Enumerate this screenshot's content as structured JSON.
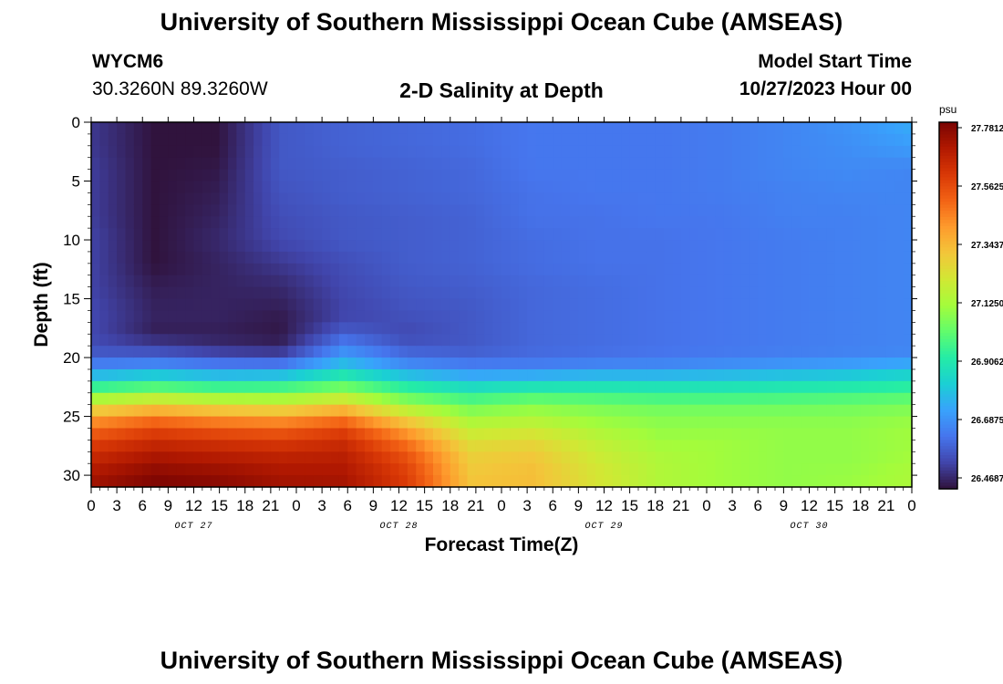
{
  "header": {
    "title": "University of Southern Mississippi Ocean Cube (AMSEAS)",
    "station_id": "WYCM6",
    "coordinates": "30.3260N  89.3260W",
    "subtitle": "2-D Salinity at Depth",
    "model_start_label": "Model Start Time",
    "model_start_value": "10/27/2023 Hour 00"
  },
  "footer": {
    "title": "University of Southern Mississippi Ocean Cube (AMSEAS)"
  },
  "colors": {
    "colormap": [
      "#30123b",
      "#4145ab",
      "#4675ed",
      "#39a2fc",
      "#1bcfd4",
      "#24eca6",
      "#61fc6c",
      "#a4fc3b",
      "#d1e834",
      "#f3c63a",
      "#fe9b2d",
      "#f36315",
      "#d93806",
      "#b11901",
      "#7a0402"
    ]
  },
  "chart_data": {
    "type": "heatmap",
    "title": "2-D Salinity at Depth",
    "xlabel": "Forecast Time(Z)",
    "ylabel": "Depth (ft)",
    "x_hours": [
      0,
      3,
      6,
      9,
      12,
      15,
      18,
      21,
      24,
      27,
      30,
      33,
      36,
      39,
      42,
      45,
      48,
      51,
      54,
      57,
      60,
      63,
      66,
      69,
      72,
      75,
      78,
      81,
      84,
      87,
      90,
      93,
      96
    ],
    "x_tick_labels": [
      "0",
      "3",
      "6",
      "9",
      "12",
      "15",
      "18",
      "21",
      "0",
      "3",
      "6",
      "9",
      "12",
      "15",
      "18",
      "21",
      "0",
      "3",
      "6",
      "9",
      "12",
      "15",
      "18",
      "21",
      "0",
      "3",
      "6",
      "9",
      "12",
      "15",
      "18",
      "21",
      "0"
    ],
    "x_day_labels": [
      {
        "label": "OCT 27",
        "hour": 12
      },
      {
        "label": "OCT 28",
        "hour": 36
      },
      {
        "label": "OCT 29",
        "hour": 60
      },
      {
        "label": "OCT 30",
        "hour": 84
      }
    ],
    "y_ticks": [
      0,
      5,
      10,
      15,
      20,
      25,
      30
    ],
    "ylim": [
      0,
      31
    ],
    "xlim": [
      0,
      96
    ],
    "depths_ft": [
      0,
      2,
      4,
      6,
      8,
      10,
      12,
      14,
      16,
      17,
      18,
      19,
      20,
      21,
      22,
      23,
      24,
      25,
      26,
      27,
      28,
      29,
      30,
      31
    ],
    "salinity_psu": [
      [
        26.54,
        26.47,
        26.47,
        26.6,
        26.62,
        26.63,
        26.64,
        26.66,
        26.66,
        26.66,
        26.67,
        26.69,
        26.72,
        26.77
      ],
      [
        26.54,
        26.47,
        26.47,
        26.6,
        26.62,
        26.63,
        26.64,
        26.66,
        26.66,
        26.66,
        26.67,
        26.69,
        26.71,
        26.74
      ],
      [
        26.55,
        26.47,
        26.48,
        26.6,
        26.61,
        26.62,
        26.63,
        26.66,
        26.66,
        26.66,
        26.67,
        26.69,
        26.7,
        26.69
      ],
      [
        26.55,
        26.47,
        26.49,
        26.59,
        26.61,
        26.62,
        26.63,
        26.65,
        26.66,
        26.66,
        26.67,
        26.68,
        26.69,
        26.69
      ],
      [
        26.55,
        26.47,
        26.5,
        26.58,
        26.6,
        26.61,
        26.62,
        26.65,
        26.65,
        26.66,
        26.66,
        26.68,
        26.68,
        26.69
      ],
      [
        26.56,
        26.47,
        26.51,
        26.57,
        26.6,
        26.61,
        26.62,
        26.64,
        26.65,
        26.65,
        26.66,
        26.67,
        26.68,
        26.69
      ],
      [
        26.56,
        26.47,
        26.5,
        26.54,
        26.58,
        26.61,
        26.62,
        26.64,
        26.65,
        26.65,
        26.66,
        26.67,
        26.68,
        26.69
      ],
      [
        26.56,
        26.49,
        26.5,
        26.51,
        26.57,
        26.6,
        26.61,
        26.63,
        26.64,
        26.65,
        26.66,
        26.67,
        26.68,
        26.69
      ],
      [
        26.57,
        26.5,
        26.5,
        26.49,
        26.56,
        26.59,
        26.6,
        26.63,
        26.64,
        26.65,
        26.66,
        26.67,
        26.68,
        26.69
      ],
      [
        26.57,
        26.5,
        26.5,
        26.48,
        26.57,
        26.58,
        26.6,
        26.63,
        26.64,
        26.65,
        26.66,
        26.67,
        26.68,
        26.69
      ],
      [
        26.57,
        26.49,
        26.49,
        26.48,
        26.62,
        26.57,
        26.6,
        26.63,
        26.64,
        26.65,
        26.66,
        26.67,
        26.68,
        26.69
      ],
      [
        26.58,
        26.56,
        26.52,
        26.5,
        26.68,
        26.6,
        26.6,
        26.63,
        26.64,
        26.65,
        26.66,
        26.67,
        26.68,
        26.69
      ],
      [
        26.62,
        26.62,
        26.59,
        26.58,
        26.75,
        26.65,
        26.63,
        26.64,
        26.65,
        26.66,
        26.67,
        26.68,
        26.69,
        26.7
      ],
      [
        26.72,
        26.75,
        26.72,
        26.72,
        26.85,
        26.74,
        26.7,
        26.7,
        26.72,
        26.72,
        26.74,
        26.76,
        26.78,
        26.82
      ],
      [
        26.87,
        26.92,
        26.88,
        26.9,
        26.98,
        26.88,
        26.82,
        26.84,
        26.86,
        26.86,
        26.86,
        26.87,
        26.88,
        26.9
      ],
      [
        27.05,
        27.1,
        27.06,
        27.06,
        27.12,
        27.0,
        26.94,
        26.97,
        26.96,
        26.95,
        26.95,
        26.96,
        26.97,
        26.99
      ],
      [
        27.22,
        27.28,
        27.24,
        27.22,
        27.28,
        27.12,
        27.04,
        27.08,
        27.06,
        27.04,
        27.04,
        27.04,
        27.05,
        27.06
      ],
      [
        27.38,
        27.44,
        27.4,
        27.38,
        27.44,
        27.26,
        27.12,
        27.14,
        27.1,
        27.08,
        27.08,
        27.08,
        27.08,
        27.1
      ],
      [
        27.48,
        27.56,
        27.52,
        27.5,
        27.56,
        27.38,
        27.18,
        27.2,
        27.14,
        27.1,
        27.1,
        27.1,
        27.1,
        27.12
      ],
      [
        27.56,
        27.62,
        27.6,
        27.58,
        27.62,
        27.46,
        27.24,
        27.26,
        27.18,
        27.12,
        27.12,
        27.1,
        27.1,
        27.12
      ],
      [
        27.62,
        27.68,
        27.66,
        27.64,
        27.66,
        27.52,
        27.28,
        27.3,
        27.2,
        27.14,
        27.12,
        27.1,
        27.1,
        27.12
      ],
      [
        27.66,
        27.72,
        27.7,
        27.68,
        27.68,
        27.56,
        27.3,
        27.32,
        27.22,
        27.15,
        27.12,
        27.1,
        27.1,
        27.13
      ],
      [
        27.7,
        27.76,
        27.74,
        27.7,
        27.7,
        27.58,
        27.31,
        27.33,
        27.23,
        27.15,
        27.12,
        27.1,
        27.11,
        27.14
      ],
      [
        27.72,
        27.78,
        27.76,
        27.72,
        27.71,
        27.59,
        27.32,
        27.33,
        27.23,
        27.15,
        27.12,
        27.1,
        27.11,
        27.14
      ]
    ],
    "colorbar": {
      "unit": "psu",
      "min": 26.4687,
      "max": 27.7812,
      "tick_labels": [
        "27.7812",
        "27.5625",
        "27.3437",
        "27.1250",
        "26.9062",
        "26.6875",
        "26.4687"
      ]
    }
  }
}
